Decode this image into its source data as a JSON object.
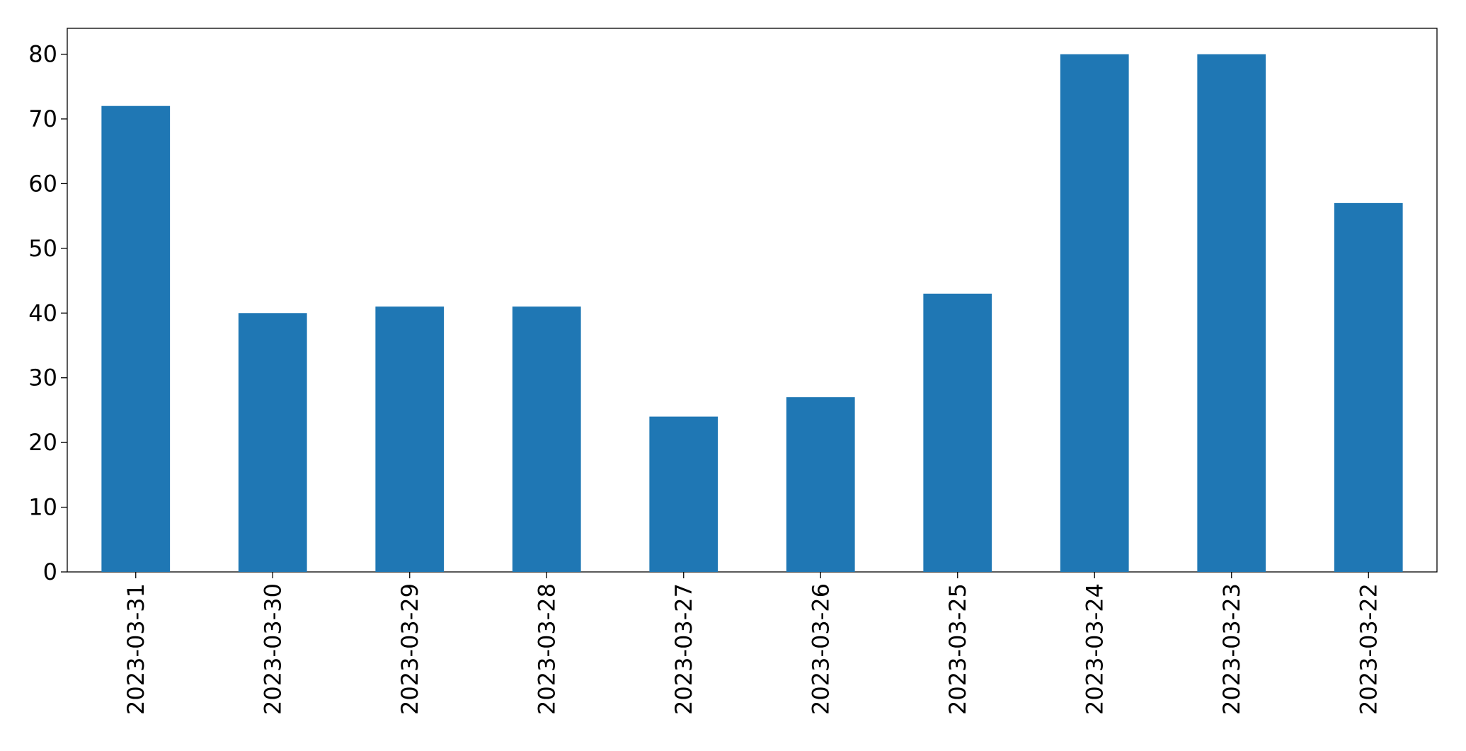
{
  "chart_data": {
    "type": "bar",
    "categories": [
      "2023-03-31",
      "2023-03-30",
      "2023-03-29",
      "2023-03-28",
      "2023-03-27",
      "2023-03-26",
      "2023-03-25",
      "2023-03-24",
      "2023-03-23",
      "2023-03-22"
    ],
    "values": [
      72,
      40,
      41,
      41,
      24,
      27,
      43,
      80,
      80,
      57
    ],
    "color": "#1f77b4",
    "ylim": [
      0,
      84
    ],
    "yticks": [
      0,
      10,
      20,
      30,
      40,
      50,
      60,
      70,
      80
    ],
    "grid": false
  }
}
